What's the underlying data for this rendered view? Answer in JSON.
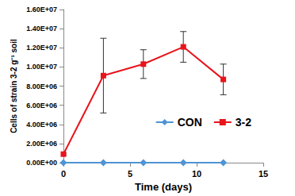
{
  "chart_data": {
    "type": "line",
    "x_label": "Time (days)",
    "y_label": "Cells of strain 3-2 g⁻¹ soil",
    "xlim": [
      0,
      15
    ],
    "xticks": [
      0,
      5,
      10,
      15
    ],
    "ylim": [
      0,
      16000000
    ],
    "yticks": [
      {
        "value": 0,
        "label": "0.00E+00"
      },
      {
        "value": 2000000,
        "label": "2.00E+06"
      },
      {
        "value": 4000000,
        "label": "4.00E+06"
      },
      {
        "value": 6000000,
        "label": "6.00E+06"
      },
      {
        "value": 8000000,
        "label": "8.00E+06"
      },
      {
        "value": 10000000,
        "label": "1.00E+07"
      },
      {
        "value": 12000000,
        "label": "1.20E+07"
      },
      {
        "value": 14000000,
        "label": "1.40E+07"
      },
      {
        "value": 16000000,
        "label": "1.60E+07"
      }
    ],
    "grid": false,
    "legend": "right",
    "series": [
      {
        "name": "CON",
        "color": "#4f94d4",
        "marker": "diamond",
        "x": [
          0,
          3,
          6,
          9,
          12
        ],
        "values": [
          0,
          0,
          0,
          0,
          0
        ]
      },
      {
        "name": "3-2",
        "color": "#e8141c",
        "marker": "square",
        "x": [
          0,
          3,
          6,
          9,
          12
        ],
        "values": [
          900000,
          9100000,
          10300000,
          12100000,
          8700000
        ],
        "error": [
          100000,
          3900000,
          1500000,
          1600000,
          1600000
        ]
      }
    ]
  }
}
